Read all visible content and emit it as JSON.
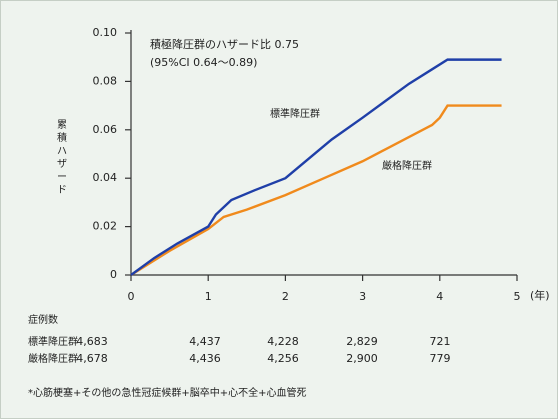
{
  "chart_data": {
    "type": "line",
    "annotations": [
      "積極降圧群のハザード比 0.75",
      "(95%CI 0.64〜0.89)"
    ],
    "y_label": "累積ハザード",
    "x_unit_label": "(年)",
    "xlim": [
      0,
      5
    ],
    "ylim": [
      0,
      0.1
    ],
    "xticks": [
      0,
      1,
      2,
      3,
      4,
      5
    ],
    "yticks": [
      0,
      0.02,
      0.04,
      0.06,
      0.08,
      {
        "value": 0.1,
        "label": "0.10"
      }
    ],
    "series": [
      {
        "name": "標準降圧群",
        "color": "#1f3fa8",
        "x": [
          0,
          0.3,
          0.6,
          1,
          1.1,
          1.3,
          1.6,
          2,
          2.3,
          2.6,
          3,
          3.3,
          3.6,
          3.9,
          4.1,
          4.8
        ],
        "values": [
          0,
          0.007,
          0.013,
          0.02,
          0.025,
          0.031,
          0.035,
          0.04,
          0.048,
          0.056,
          0.065,
          0.072,
          0.079,
          0.085,
          0.089,
          0.089
        ]
      },
      {
        "name": "厳格降圧群",
        "color": "#f08a1c",
        "x": [
          0,
          0.5,
          1,
          1.2,
          1.5,
          2,
          2.5,
          3,
          3.3,
          3.6,
          3.9,
          4,
          4.1,
          4.8
        ],
        "values": [
          0,
          0.01,
          0.019,
          0.024,
          0.027,
          0.033,
          0.04,
          0.047,
          0.052,
          0.057,
          0.062,
          0.065,
          0.07,
          0.07
        ]
      }
    ],
    "risk_table": {
      "title": "症例数",
      "rows": [
        {
          "name": "標準降圧群",
          "values": [
            "4,683",
            "4,437",
            "4,228",
            "2,829",
            "721"
          ]
        },
        {
          "name": "厳格降圧群",
          "values": [
            "4,678",
            "4,436",
            "4,256",
            "2,900",
            "779"
          ]
        }
      ]
    },
    "footnote": "*心筋梗塞+その他の急性冠症候群+脳卒中+心不全+心血管死"
  }
}
